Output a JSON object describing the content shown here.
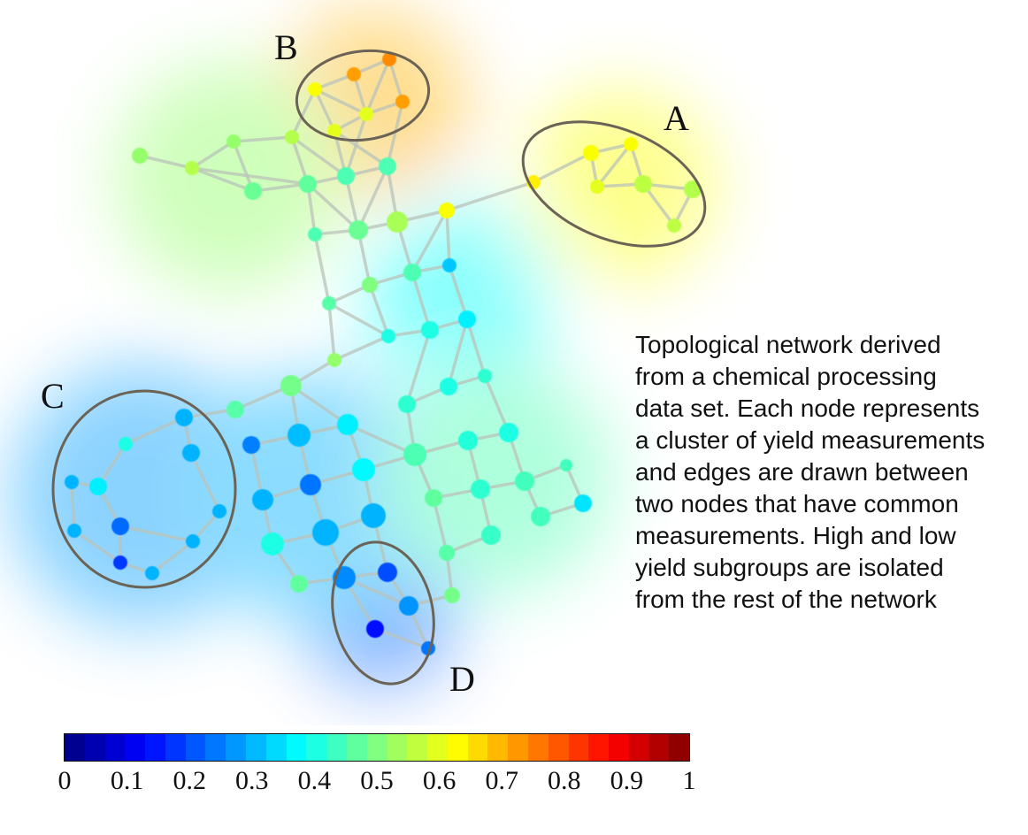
{
  "caption_lines": [
    "Topological network derived",
    "from a chemical processing",
    "data set. Each node represents",
    "a cluster of yield measurements",
    "and edges are drawn between",
    "two nodes that have common",
    "measurements. High and low",
    "yield subgroups are isolated",
    "from the rest of the network"
  ],
  "group_labels": {
    "a": "A",
    "b": "B",
    "c": "C",
    "d": "D"
  },
  "colorbar": {
    "ticks": [
      "0",
      "0.1",
      "0.2",
      "0.3",
      "0.4",
      "0.5",
      "0.6",
      "0.7",
      "0.8",
      "0.9",
      "1"
    ],
    "range": [
      0,
      1
    ],
    "colormap": "jet"
  },
  "colors": {
    "edge": "#b9c3b9",
    "group_outline": "#6b6456"
  }
}
